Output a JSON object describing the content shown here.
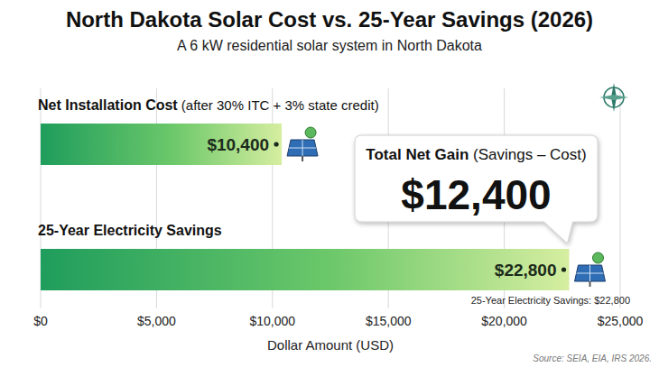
{
  "chart_data": {
    "type": "bar",
    "orientation": "horizontal",
    "title": "North Dakota Solar Cost vs. 25-Year Savings (2026)",
    "subtitle": "A 6 kW residential solar system in North Dakota",
    "categories": [
      "Net Installation Cost (after 30% ITC + 3% state credit)",
      "25-Year Electricity Savings"
    ],
    "values": [
      10400,
      22800
    ],
    "value_labels": [
      "$10,400",
      "$22,800"
    ],
    "data_labels": true,
    "color": "#1f9d5c",
    "xlim": [
      0,
      25000
    ],
    "xticks": [
      {
        "value": 0,
        "label": "$0"
      },
      {
        "value": 5000,
        "label": "$5,000"
      },
      {
        "value": 10000,
        "label": "$10,000"
      },
      {
        "value": 15000,
        "label": "$15,000"
      },
      {
        "value": 20000,
        "label": "$20,000"
      },
      {
        "value": 25000,
        "label": "$25,000"
      }
    ],
    "x_label": "Dollar Amount (USD)",
    "grid": true,
    "annotations": [
      "Total Net Gain (Savings – Cost)",
      "$12,400",
      "25-Year Electricity Savings: $22,800"
    ],
    "source": "Source: SEIA, EIA, IRS 2026."
  }
}
